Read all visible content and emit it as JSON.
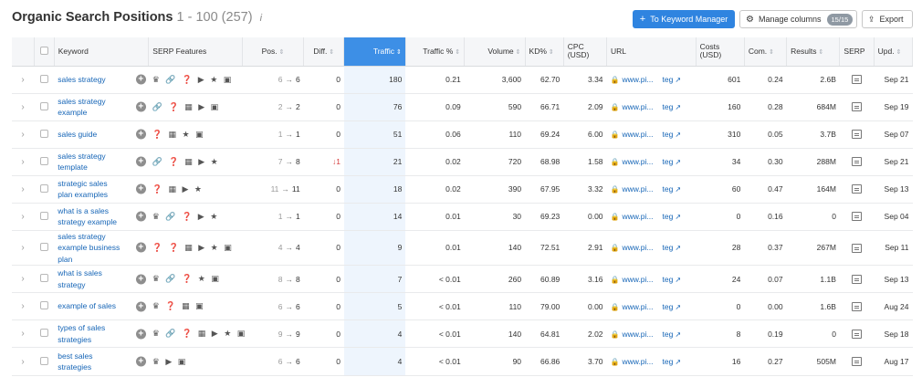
{
  "header": {
    "title": "Organic Search Positions",
    "range": "1 - 100 (257)",
    "info_icon": "i"
  },
  "toolbar": {
    "to_keyword_manager": "To Keyword Manager",
    "manage_columns": "Manage columns",
    "manage_columns_count": "15/15",
    "export": "Export"
  },
  "columns": {
    "keyword": "Keyword",
    "serp_features": "SERP Features",
    "pos": "Pos.",
    "diff": "Diff.",
    "traffic": "Traffic",
    "traffic_pct": "Traffic %",
    "volume": "Volume",
    "kd": "KD%",
    "cpc": "CPC (USD)",
    "url": "URL",
    "costs": "Costs (USD)",
    "com": "Com.",
    "results": "Results",
    "serp": "SERP",
    "upd": "Upd."
  },
  "rows": [
    {
      "keyword": "sales strategy",
      "serp": "♛ 🔗 ❓ ▶ ★ ▣",
      "pos_prev": "6",
      "pos_cur": "6",
      "diff": "0",
      "diff_dir": "",
      "traffic": "180",
      "traffic_pct": "0.21",
      "volume": "3,600",
      "kd": "62.70",
      "cpc": "3.34",
      "url_domain": "www.pi...",
      "url_path": "teg",
      "costs": "601",
      "com": "0.24",
      "results": "2.6B",
      "upd": "Sep 21"
    },
    {
      "keyword": "sales strategy example",
      "serp": "🔗 ❓ ▦ ▶ ▣",
      "pos_prev": "2",
      "pos_cur": "2",
      "diff": "0",
      "diff_dir": "",
      "traffic": "76",
      "traffic_pct": "0.09",
      "volume": "590",
      "kd": "66.71",
      "cpc": "2.09",
      "url_domain": "www.pi...",
      "url_path": "teg",
      "costs": "160",
      "com": "0.28",
      "results": "684M",
      "upd": "Sep 19"
    },
    {
      "keyword": "sales guide",
      "serp": "❓ ▦ ★ ▣",
      "pos_prev": "1",
      "pos_cur": "1",
      "diff": "0",
      "diff_dir": "",
      "traffic": "51",
      "traffic_pct": "0.06",
      "volume": "110",
      "kd": "69.24",
      "cpc": "6.00",
      "url_domain": "www.pi...",
      "url_path": "teg",
      "costs": "310",
      "com": "0.05",
      "results": "3.7B",
      "upd": "Sep 07"
    },
    {
      "keyword": "sales strategy template",
      "serp": "🔗 ❓ ▦ ▶ ★",
      "pos_prev": "7",
      "pos_cur": "8",
      "diff": "1",
      "diff_dir": "down",
      "traffic": "21",
      "traffic_pct": "0.02",
      "volume": "720",
      "kd": "68.98",
      "cpc": "1.58",
      "url_domain": "www.pi...",
      "url_path": "teg",
      "costs": "34",
      "com": "0.30",
      "results": "288M",
      "upd": "Sep 21"
    },
    {
      "keyword": "strategic sales plan examples",
      "serp": "❓ ▦ ▶ ★",
      "pos_prev": "11",
      "pos_cur": "11",
      "diff": "0",
      "diff_dir": "",
      "traffic": "18",
      "traffic_pct": "0.02",
      "volume": "390",
      "kd": "67.95",
      "cpc": "3.32",
      "url_domain": "www.pi...",
      "url_path": "teg",
      "costs": "60",
      "com": "0.47",
      "results": "164M",
      "upd": "Sep 13"
    },
    {
      "keyword": "what is a sales strategy example",
      "serp": "♛ 🔗 ❓ ▶ ★",
      "pos_prev": "1",
      "pos_cur": "1",
      "diff": "0",
      "diff_dir": "",
      "traffic": "14",
      "traffic_pct": "0.01",
      "volume": "30",
      "kd": "69.23",
      "cpc": "0.00",
      "url_domain": "www.pi...",
      "url_path": "teg",
      "costs": "0",
      "com": "0.16",
      "results": "0",
      "upd": "Sep 04"
    },
    {
      "keyword": "sales strategy example business plan",
      "serp": "❓ ❓ ▦ ▶ ★ ▣",
      "pos_prev": "4",
      "pos_cur": "4",
      "diff": "0",
      "diff_dir": "",
      "traffic": "9",
      "traffic_pct": "0.01",
      "volume": "140",
      "kd": "72.51",
      "cpc": "2.91",
      "url_domain": "www.pi...",
      "url_path": "teg",
      "costs": "28",
      "com": "0.37",
      "results": "267M",
      "upd": "Sep 11"
    },
    {
      "keyword": "what is sales strategy",
      "serp": "♛ 🔗 ❓ ★ ▣",
      "pos_prev": "8",
      "pos_cur": "8",
      "diff": "0",
      "diff_dir": "",
      "traffic": "7",
      "traffic_pct": "< 0.01",
      "volume": "260",
      "kd": "60.89",
      "cpc": "3.16",
      "url_domain": "www.pi...",
      "url_path": "teg",
      "costs": "24",
      "com": "0.07",
      "results": "1.1B",
      "upd": "Sep 13"
    },
    {
      "keyword": "example of sales",
      "serp": "♛ ❓ ▦ ▣",
      "pos_prev": "6",
      "pos_cur": "6",
      "diff": "0",
      "diff_dir": "",
      "traffic": "5",
      "traffic_pct": "< 0.01",
      "volume": "110",
      "kd": "79.00",
      "cpc": "0.00",
      "url_domain": "www.pi...",
      "url_path": "teg",
      "costs": "0",
      "com": "0.00",
      "results": "1.6B",
      "upd": "Aug 24"
    },
    {
      "keyword": "types of sales strategies",
      "serp": "♛ 🔗 ❓ ▦ ▶ ★ ▣",
      "pos_prev": "9",
      "pos_cur": "9",
      "diff": "0",
      "diff_dir": "",
      "traffic": "4",
      "traffic_pct": "< 0.01",
      "volume": "140",
      "kd": "64.81",
      "cpc": "2.02",
      "url_domain": "www.pi...",
      "url_path": "teg",
      "costs": "8",
      "com": "0.19",
      "results": "0",
      "upd": "Sep 18"
    },
    {
      "keyword": "best sales strategies",
      "serp": "♛ ▶ ▣",
      "pos_prev": "6",
      "pos_cur": "6",
      "diff": "0",
      "diff_dir": "",
      "traffic": "4",
      "traffic_pct": "< 0.01",
      "volume": "90",
      "kd": "66.86",
      "cpc": "3.70",
      "url_domain": "www.pi...",
      "url_path": "teg",
      "costs": "16",
      "com": "0.27",
      "results": "505M",
      "upd": "Aug 17"
    }
  ],
  "icons": {
    "expand": "chevron-right-icon",
    "add": "plus-circle-icon",
    "lock": "lock-icon",
    "external": "external-link-icon",
    "serp_snapshot": "serp-snapshot-icon"
  },
  "colors": {
    "accent": "#2f84e0",
    "sorted_header": "#3d8fe6",
    "link": "#1766b7",
    "diff_down": "#d63a3a"
  }
}
